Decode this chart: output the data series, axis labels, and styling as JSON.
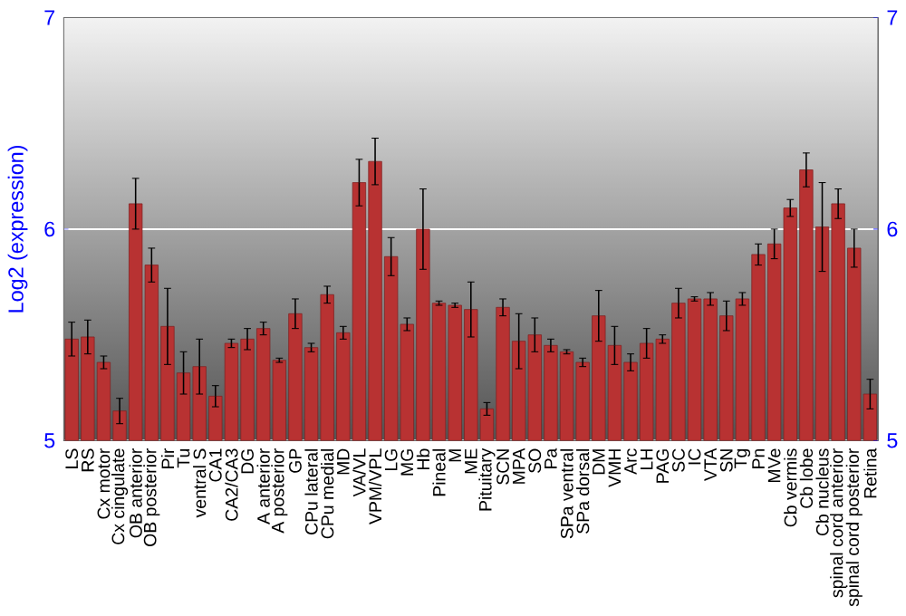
{
  "chart_data": {
    "type": "bar",
    "ylabel": "Log2 (expression)",
    "categories": [
      "LS",
      "RS",
      "Cx motor",
      "Cx cingulate",
      "OB anterior",
      "OB posterior",
      "Pir",
      "Tu",
      "ventral S",
      "CA1",
      "CA2/CA3",
      "DG",
      "A anterior",
      "A posterior",
      "GP",
      "CPu lateral",
      "CPu medial",
      "MD",
      "VA/VL",
      "VPM/VPL",
      "LG",
      "MG",
      "Hb",
      "Pineal",
      "M",
      "ME",
      "Pituitary",
      "SCN",
      "MPA",
      "SO",
      "Pa",
      "SPa ventral",
      "SPa dorsal",
      "DM",
      "VMH",
      "Arc",
      "LH",
      "PAG",
      "SC",
      "IC",
      "VTA",
      "SN",
      "Tg",
      "Pn",
      "MVe",
      "Cb vermis",
      "Cb lobe",
      "Cb nucleus",
      "spinal cord anterior",
      "spinal cord posterior",
      "Retina"
    ],
    "values": [
      5.48,
      5.49,
      5.37,
      5.14,
      6.12,
      5.83,
      5.54,
      5.32,
      5.35,
      5.21,
      5.46,
      5.48,
      5.53,
      5.38,
      5.6,
      5.44,
      5.69,
      5.51,
      6.22,
      6.32,
      5.87,
      5.55,
      6.0,
      5.65,
      5.64,
      5.62,
      5.15,
      5.63,
      5.47,
      5.5,
      5.45,
      5.42,
      5.37,
      5.59,
      5.45,
      5.37,
      5.46,
      5.48,
      5.65,
      5.67,
      5.67,
      5.59,
      5.67,
      5.88,
      5.93,
      6.1,
      6.28,
      6.01,
      6.12,
      5.91,
      5.22
    ],
    "errors": [
      0.08,
      0.08,
      0.03,
      0.06,
      0.12,
      0.08,
      0.18,
      0.1,
      0.13,
      0.05,
      0.02,
      0.05,
      0.03,
      0.01,
      0.07,
      0.02,
      0.04,
      0.03,
      0.11,
      0.11,
      0.09,
      0.03,
      0.19,
      0.01,
      0.01,
      0.13,
      0.03,
      0.04,
      0.13,
      0.08,
      0.03,
      0.01,
      0.02,
      0.12,
      0.09,
      0.04,
      0.07,
      0.02,
      0.07,
      0.01,
      0.03,
      0.07,
      0.03,
      0.05,
      0.07,
      0.04,
      0.08,
      0.21,
      0.07,
      0.09,
      0.07
    ],
    "color": "#b83232",
    "ylim": [
      5,
      7
    ],
    "yticks": [
      5,
      6,
      7
    ],
    "y2lim": [
      5,
      7
    ],
    "y2ticks": [
      5,
      6,
      7
    ],
    "grid": "y"
  }
}
